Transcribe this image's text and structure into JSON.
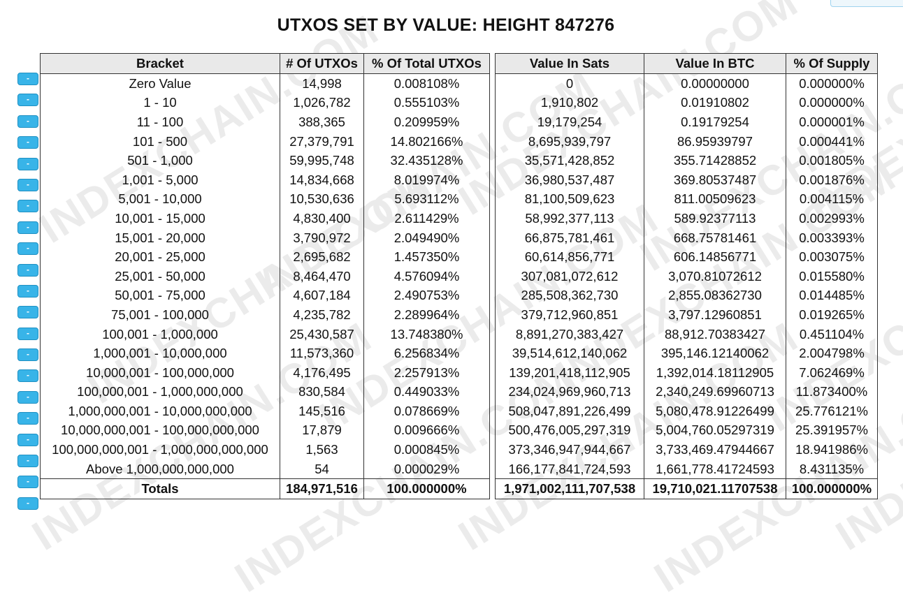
{
  "title": "UTXOS SET BY VALUE: HEIGHT 847276",
  "watermark_text": "INDEXCHAIN.COM",
  "toggle_label": "-",
  "columns_left": [
    "Bracket",
    "# Of UTXOs",
    "% Of Total UTXOs"
  ],
  "columns_right": [
    "Value In Sats",
    "Value In BTC",
    "% Of Supply"
  ],
  "rows": [
    {
      "bracket": "Zero Value",
      "count": "14,998",
      "pct_utxos": "0.008108%",
      "sats": "0",
      "btc": "0.00000000",
      "pct_supply": "0.000000%"
    },
    {
      "bracket": "1 - 10",
      "count": "1,026,782",
      "pct_utxos": "0.555103%",
      "sats": "1,910,802",
      "btc": "0.01910802",
      "pct_supply": "0.000000%"
    },
    {
      "bracket": "11 - 100",
      "count": "388,365",
      "pct_utxos": "0.209959%",
      "sats": "19,179,254",
      "btc": "0.19179254",
      "pct_supply": "0.000001%"
    },
    {
      "bracket": "101 - 500",
      "count": "27,379,791",
      "pct_utxos": "14.802166%",
      "sats": "8,695,939,797",
      "btc": "86.95939797",
      "pct_supply": "0.000441%"
    },
    {
      "bracket": "501 - 1,000",
      "count": "59,995,748",
      "pct_utxos": "32.435128%",
      "sats": "35,571,428,852",
      "btc": "355.71428852",
      "pct_supply": "0.001805%"
    },
    {
      "bracket": "1,001 - 5,000",
      "count": "14,834,668",
      "pct_utxos": "8.019974%",
      "sats": "36,980,537,487",
      "btc": "369.80537487",
      "pct_supply": "0.001876%"
    },
    {
      "bracket": "5,001 - 10,000",
      "count": "10,530,636",
      "pct_utxos": "5.693112%",
      "sats": "81,100,509,623",
      "btc": "811.00509623",
      "pct_supply": "0.004115%"
    },
    {
      "bracket": "10,001 - 15,000",
      "count": "4,830,400",
      "pct_utxos": "2.611429%",
      "sats": "58,992,377,113",
      "btc": "589.92377113",
      "pct_supply": "0.002993%"
    },
    {
      "bracket": "15,001 - 20,000",
      "count": "3,790,972",
      "pct_utxos": "2.049490%",
      "sats": "66,875,781,461",
      "btc": "668.75781461",
      "pct_supply": "0.003393%"
    },
    {
      "bracket": "20,001 - 25,000",
      "count": "2,695,682",
      "pct_utxos": "1.457350%",
      "sats": "60,614,856,771",
      "btc": "606.14856771",
      "pct_supply": "0.003075%"
    },
    {
      "bracket": "25,001 - 50,000",
      "count": "8,464,470",
      "pct_utxos": "4.576094%",
      "sats": "307,081,072,612",
      "btc": "3,070.81072612",
      "pct_supply": "0.015580%"
    },
    {
      "bracket": "50,001 - 75,000",
      "count": "4,607,184",
      "pct_utxos": "2.490753%",
      "sats": "285,508,362,730",
      "btc": "2,855.08362730",
      "pct_supply": "0.014485%"
    },
    {
      "bracket": "75,001 - 100,000",
      "count": "4,235,782",
      "pct_utxos": "2.289964%",
      "sats": "379,712,960,851",
      "btc": "3,797.12960851",
      "pct_supply": "0.019265%"
    },
    {
      "bracket": "100,001 - 1,000,000",
      "count": "25,430,587",
      "pct_utxos": "13.748380%",
      "sats": "8,891,270,383,427",
      "btc": "88,912.70383427",
      "pct_supply": "0.451104%"
    },
    {
      "bracket": "1,000,001 - 10,000,000",
      "count": "11,573,360",
      "pct_utxos": "6.256834%",
      "sats": "39,514,612,140,062",
      "btc": "395,146.12140062",
      "pct_supply": "2.004798%"
    },
    {
      "bracket": "10,000,001 - 100,000,000",
      "count": "4,176,495",
      "pct_utxos": "2.257913%",
      "sats": "139,201,418,112,905",
      "btc": "1,392,014.18112905",
      "pct_supply": "7.062469%"
    },
    {
      "bracket": "100,000,001 - 1,000,000,000",
      "count": "830,584",
      "pct_utxos": "0.449033%",
      "sats": "234,024,969,960,713",
      "btc": "2,340,249.69960713",
      "pct_supply": "11.873400%"
    },
    {
      "bracket": "1,000,000,001 - 10,000,000,000",
      "count": "145,516",
      "pct_utxos": "0.078669%",
      "sats": "508,047,891,226,499",
      "btc": "5,080,478.91226499",
      "pct_supply": "25.776121%"
    },
    {
      "bracket": "10,000,000,001 - 100,000,000,000",
      "count": "17,879",
      "pct_utxos": "0.009666%",
      "sats": "500,476,005,297,319",
      "btc": "5,004,760.05297319",
      "pct_supply": "25.391957%"
    },
    {
      "bracket": "100,000,000,001 - 1,000,000,000,000",
      "count": "1,563",
      "pct_utxos": "0.000845%",
      "sats": "373,346,947,944,667",
      "btc": "3,733,469.47944667",
      "pct_supply": "18.941986%"
    },
    {
      "bracket": "Above 1,000,000,000,000",
      "count": "54",
      "pct_utxos": "0.000029%",
      "sats": "166,177,841,724,593",
      "btc": "1,661,778.41724593",
      "pct_supply": "8.431135%"
    }
  ],
  "totals": {
    "label": "Totals",
    "count": "184,971,516",
    "pct_utxos": "100.000000%",
    "sats": "1,971,002,111,707,538",
    "btc": "19,710,021.11707538",
    "pct_supply": "100.000000%"
  }
}
